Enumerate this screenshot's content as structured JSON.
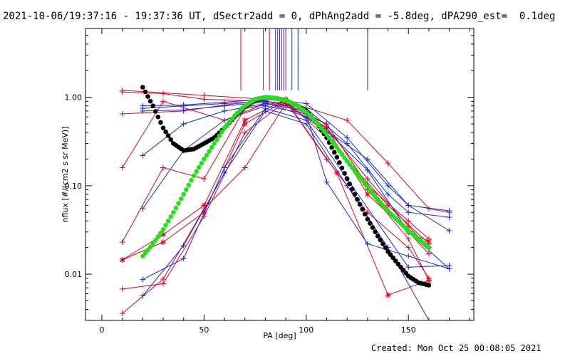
{
  "chart_data": {
    "type": "line",
    "title": "2021-10-06/19:37:16 - 19:37:36 UT, dSectr2add = 0, dPhAng2add = -5.8deg, dPA290_est=  0.1deg",
    "footer": "Created: Mon Oct 25 00:08:05 2021",
    "xlabel": "PA [deg]",
    "ylabel": "nflux [#/(cm2 s sr MeV)]",
    "x_scale": "linear",
    "y_scale": "log",
    "xlim": [
      -8,
      182
    ],
    "ylim": [
      0.003,
      6.0
    ],
    "x_ticks": [
      0,
      50,
      100,
      150
    ],
    "x_tick_labels": [
      "0",
      "50",
      "100",
      "150"
    ],
    "y_ticks": [
      0.01,
      0.1,
      1.0
    ],
    "y_tick_labels": [
      "0.01",
      "0.10",
      "1.00"
    ],
    "grid": false,
    "legend": "none",
    "colors": {
      "red": "#e8001c",
      "blue": "#1428e6",
      "black": "#000000",
      "green": "#22e01a"
    },
    "top_markers": {
      "y_range": [
        1.2,
        6.0
      ],
      "x": [
        68,
        79,
        82,
        85,
        86,
        87,
        88,
        89,
        90,
        93,
        96,
        130
      ],
      "colors": [
        "red",
        "red",
        "red",
        "blue",
        "red",
        "blue",
        "red",
        "blue",
        "red",
        "blue",
        "blue",
        "red"
      ]
    },
    "series": [
      {
        "color": "red",
        "marker": "plus",
        "x": [
          10,
          50,
          80,
          90,
          120,
          140,
          160,
          170
        ],
        "y": [
          1.2,
          1.05,
          0.95,
          0.9,
          0.55,
          0.18,
          0.055,
          0.05
        ]
      },
      {
        "color": "red",
        "marker": "plus",
        "x": [
          10,
          30,
          50,
          80,
          90,
          110,
          130,
          150,
          160
        ],
        "y": [
          1.15,
          1.1,
          0.95,
          0.9,
          0.85,
          0.5,
          0.1,
          0.04,
          0.025
        ]
      },
      {
        "color": "red",
        "marker": "plus",
        "x": [
          10,
          40,
          60,
          80,
          90,
          110,
          130,
          150,
          160
        ],
        "y": [
          0.65,
          0.7,
          0.82,
          0.92,
          0.8,
          0.45,
          0.12,
          0.035,
          0.02
        ]
      },
      {
        "color": "red",
        "marker": "plus",
        "x": [
          10,
          30,
          60,
          80,
          90,
          110,
          130,
          150,
          160
        ],
        "y": [
          0.16,
          0.9,
          0.55,
          0.85,
          0.8,
          0.5,
          0.1,
          0.03,
          0.017
        ]
      },
      {
        "color": "red",
        "marker": "plus",
        "x": [
          10,
          30,
          50,
          70,
          90,
          110,
          140,
          160
        ],
        "y": [
          0.023,
          0.16,
          0.12,
          0.75,
          0.9,
          0.35,
          0.06,
          0.022
        ]
      },
      {
        "color": "red",
        "marker": "asterisk",
        "x": [
          10,
          30,
          50,
          70,
          90,
          110,
          130,
          150,
          160
        ],
        "y": [
          0.0145,
          0.028,
          0.06,
          0.55,
          0.95,
          0.45,
          0.08,
          0.03,
          0.0235
        ]
      },
      {
        "color": "red",
        "marker": "asterisk",
        "x": [
          10,
          30,
          50,
          70,
          90,
          115,
          140,
          160
        ],
        "y": [
          0.0145,
          0.023,
          0.05,
          0.5,
          0.92,
          0.14,
          0.0058,
          0.0085
        ]
      },
      {
        "color": "red",
        "marker": "plus",
        "x": [
          10,
          30,
          50,
          70,
          90,
          110,
          130,
          150,
          160
        ],
        "y": [
          0.0068,
          0.0078,
          0.045,
          0.4,
          0.9,
          0.2,
          0.05,
          0.02,
          0.009
        ]
      },
      {
        "color": "red",
        "marker": "plus",
        "x": [
          10,
          30,
          50,
          70,
          90,
          110,
          130,
          150,
          160
        ],
        "y": [
          0.0036,
          0.0088,
          0.055,
          0.16,
          0.85,
          0.4,
          0.09,
          0.025,
          0.0085
        ]
      },
      {
        "color": "blue",
        "marker": "plus",
        "x": [
          20,
          40,
          60,
          80,
          100,
          120,
          140,
          150,
          170
        ],
        "y": [
          0.8,
          0.82,
          0.88,
          0.95,
          0.85,
          0.35,
          0.1,
          0.06,
          0.052
        ]
      },
      {
        "color": "blue",
        "marker": "plus",
        "x": [
          20,
          40,
          60,
          80,
          100,
          120,
          140,
          150,
          170
        ],
        "y": [
          0.75,
          0.8,
          0.85,
          0.9,
          0.75,
          0.3,
          0.08,
          0.05,
          0.044
        ]
      },
      {
        "color": "blue",
        "marker": "plus",
        "x": [
          20,
          40,
          60,
          80,
          100,
          130,
          150,
          170
        ],
        "y": [
          0.7,
          0.72,
          0.8,
          0.88,
          0.6,
          0.2,
          0.06,
          0.031
        ]
      },
      {
        "color": "blue",
        "marker": "plus",
        "x": [
          20,
          40,
          60,
          80,
          100,
          130,
          150,
          170
        ],
        "y": [
          0.22,
          0.5,
          0.7,
          0.85,
          0.7,
          0.15,
          0.03,
          0.0115
        ]
      },
      {
        "color": "blue",
        "marker": "plus",
        "x": [
          20,
          40,
          60,
          80,
          100,
          110,
          130,
          150,
          170
        ],
        "y": [
          0.055,
          0.25,
          0.55,
          0.8,
          0.65,
          0.11,
          0.022,
          0.016,
          0.0115
        ]
      },
      {
        "color": "blue",
        "marker": "plus",
        "x": [
          20,
          40,
          60,
          80,
          100,
          120,
          150,
          170
        ],
        "y": [
          0.0087,
          0.015,
          0.16,
          0.75,
          0.55,
          0.12,
          0.012,
          0.0125
        ]
      },
      {
        "color": "blue",
        "marker": "plus",
        "x": [
          20,
          40,
          60,
          80,
          100,
          120,
          140,
          160
        ],
        "y": [
          0.0057,
          0.021,
          0.14,
          0.7,
          0.5,
          0.1,
          0.02,
          0.003
        ]
      },
      {
        "color": "black",
        "marker": "dot",
        "curve": true,
        "x": [
          20,
          25,
          30,
          35,
          40,
          45,
          50,
          55,
          60,
          65,
          70,
          75,
          80,
          85,
          90,
          95,
          100,
          105,
          110,
          115,
          120,
          125,
          130,
          135,
          140,
          145,
          150,
          155,
          160
        ],
        "y": [
          1.3,
          0.8,
          0.45,
          0.3,
          0.25,
          0.26,
          0.3,
          0.35,
          0.45,
          0.6,
          0.78,
          0.92,
          1.0,
          0.98,
          0.92,
          0.82,
          0.7,
          0.52,
          0.35,
          0.21,
          0.12,
          0.07,
          0.042,
          0.027,
          0.018,
          0.013,
          0.0095,
          0.008,
          0.0075
        ]
      },
      {
        "color": "green",
        "marker": "dot",
        "curve": true,
        "x": [
          20,
          25,
          30,
          35,
          40,
          45,
          50,
          55,
          60,
          65,
          70,
          75,
          80,
          85,
          90,
          95,
          100,
          105,
          110,
          115,
          120,
          125,
          130,
          135,
          140,
          145,
          150,
          155,
          160
        ],
        "y": [
          0.016,
          0.022,
          0.032,
          0.05,
          0.08,
          0.13,
          0.2,
          0.3,
          0.45,
          0.62,
          0.8,
          0.95,
          1.0,
          0.98,
          0.92,
          0.82,
          0.68,
          0.52,
          0.38,
          0.27,
          0.19,
          0.135,
          0.097,
          0.07,
          0.052,
          0.04,
          0.031,
          0.025,
          0.02
        ]
      }
    ]
  }
}
